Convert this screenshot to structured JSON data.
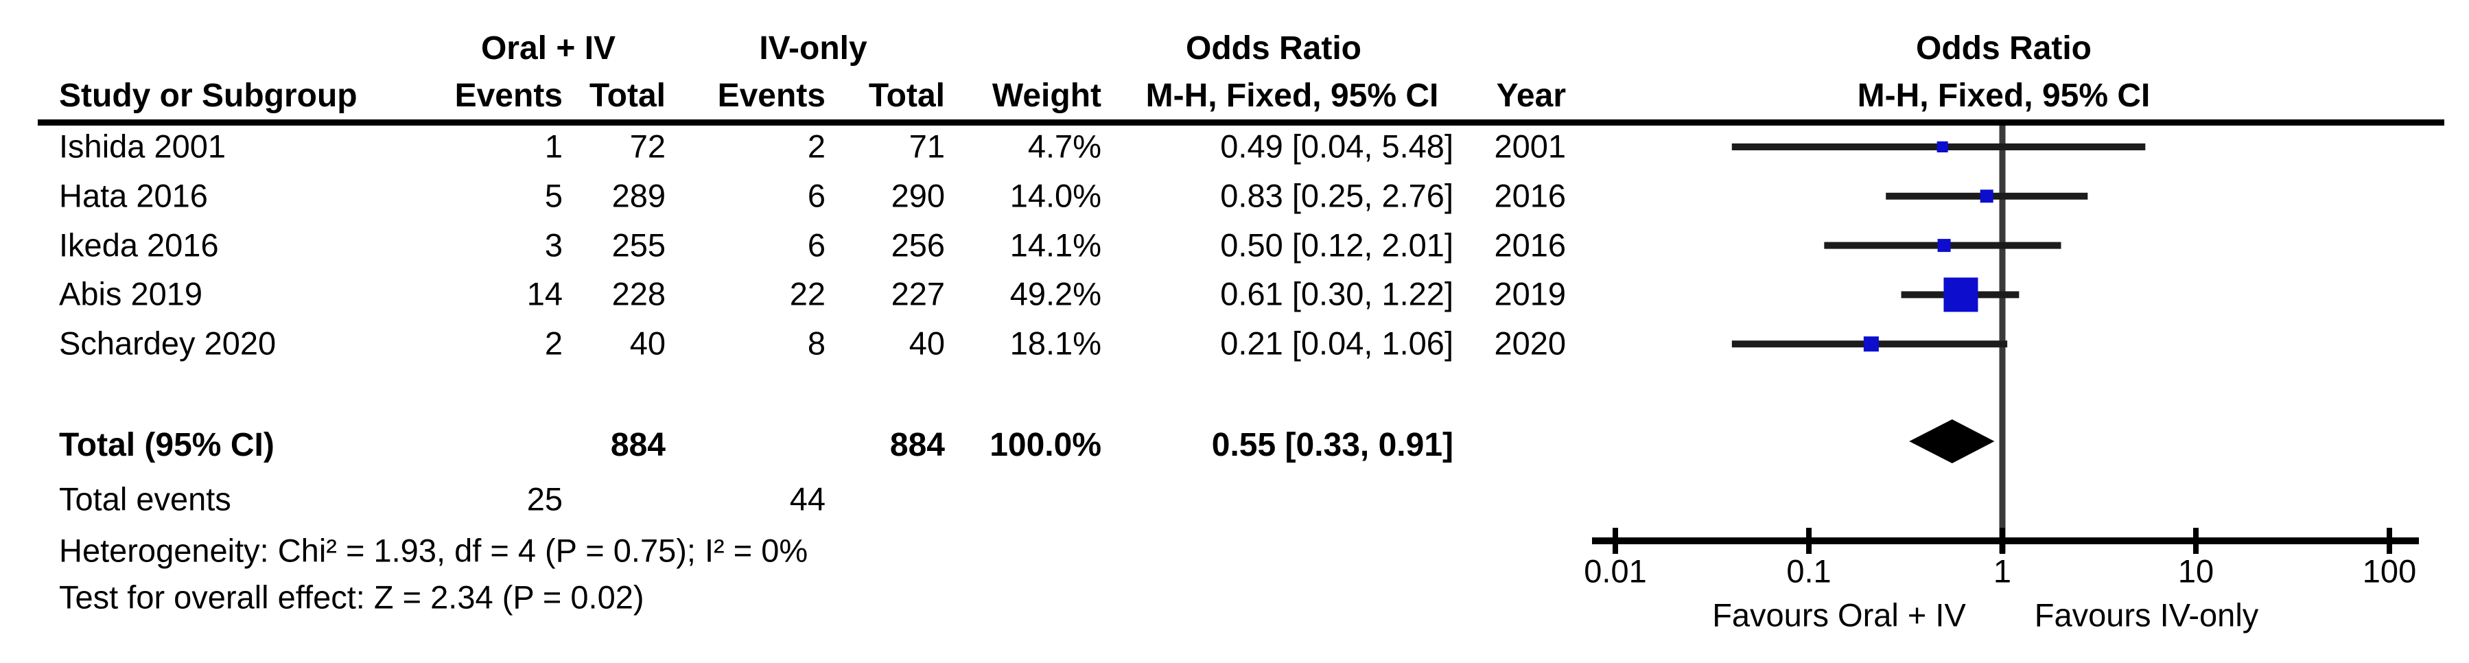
{
  "figure_title": "Forest plot — Odds Ratio, M-H, Fixed, 95% CI: Oral + IV vs IV-only",
  "header": {
    "study": "Study or Subgroup",
    "events": "Events",
    "total": "Total",
    "weight": "Weight",
    "odds_ratio": "Odds Ratio",
    "mh_ci": "M-H, Fixed, 95% CI",
    "year": "Year"
  },
  "colors": {
    "marker": "#0D0DCE",
    "diamond": "#000000",
    "ci_line": "#1c1c1c",
    "axis": "#000000",
    "vline": "#3a3a3a",
    "text": "#000000"
  },
  "chart_data": {
    "type": "forest",
    "measure": "Odds Ratio",
    "method": "M-H, Fixed, 95% CI",
    "groups": [
      "Oral + IV",
      "IV-only"
    ],
    "x_axis": {
      "scale": "log",
      "ticks": [
        0.01,
        0.1,
        1,
        10,
        100
      ],
      "range": [
        0.01,
        100
      ],
      "null_line": 1,
      "label_left": "Favours Oral + IV",
      "label_right": "Favours IV-only"
    },
    "studies": [
      {
        "study": "Ishida 2001",
        "events1": 1,
        "total1": 72,
        "events2": 2,
        "total2": 71,
        "weight": "4.7%",
        "or": 0.49,
        "ci_low": 0.04,
        "ci_high": 5.48,
        "or_ci_text": "0.49 [0.04, 5.48]",
        "year": "2001",
        "marker_px": 16
      },
      {
        "study": "Hata 2016",
        "events1": 5,
        "total1": 289,
        "events2": 6,
        "total2": 290,
        "weight": "14.0%",
        "or": 0.83,
        "ci_low": 0.25,
        "ci_high": 2.76,
        "or_ci_text": "0.83 [0.25, 2.76]",
        "year": "2016",
        "marker_px": 19
      },
      {
        "study": "Ikeda 2016",
        "events1": 3,
        "total1": 255,
        "events2": 6,
        "total2": 256,
        "weight": "14.1%",
        "or": 0.5,
        "ci_low": 0.12,
        "ci_high": 2.01,
        "or_ci_text": "0.50 [0.12, 2.01]",
        "year": "2016",
        "marker_px": 19
      },
      {
        "study": "Abis 2019",
        "events1": 14,
        "total1": 228,
        "events2": 22,
        "total2": 227,
        "weight": "49.2%",
        "or": 0.61,
        "ci_low": 0.3,
        "ci_high": 1.22,
        "or_ci_text": "0.61 [0.30, 1.22]",
        "year": "2019",
        "marker_px": 50
      },
      {
        "study": "Schardey 2020",
        "events1": 2,
        "total1": 40,
        "events2": 8,
        "total2": 40,
        "weight": "18.1%",
        "or": 0.21,
        "ci_low": 0.04,
        "ci_high": 1.06,
        "or_ci_text": "0.21 [0.04, 1.06]",
        "year": "2020",
        "marker_px": 22
      }
    ],
    "total": {
      "label": "Total (95% CI)",
      "total1": 884,
      "total2": 884,
      "weight": "100.0%",
      "or": 0.55,
      "ci_low": 0.33,
      "ci_high": 0.91,
      "or_ci_text": "0.55 [0.33, 0.91]"
    },
    "total_events": {
      "label": "Total events",
      "events1": 25,
      "events2": 44
    },
    "heterogeneity": "Heterogeneity: Chi² = 1.93, df = 4 (P = 0.75); I² = 0%",
    "overall_effect": "Test for overall effect: Z = 2.34 (P = 0.02)"
  }
}
